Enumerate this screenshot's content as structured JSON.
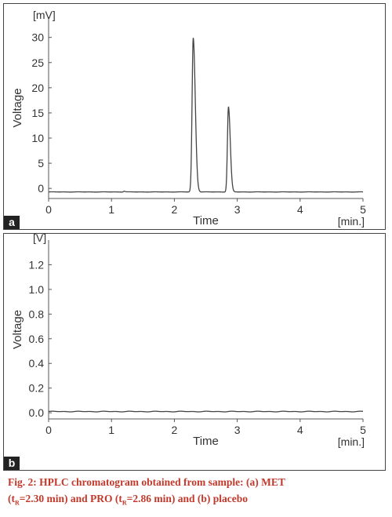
{
  "chart_data": [
    {
      "type": "line",
      "panel_label": "a",
      "unit_label": "[mV]",
      "ylabel": "Voltage",
      "xlabel": "Time",
      "x_unit_label": "[min.]",
      "xlim": [
        0,
        5
      ],
      "ylim": [
        -2,
        34
      ],
      "x_ticks": [
        0,
        1,
        2,
        3,
        4,
        5
      ],
      "y_ticks": [
        0,
        5,
        10,
        15,
        20,
        25,
        30
      ],
      "y_tick_labels": [
        "0",
        "5",
        "10",
        "15",
        "20",
        "25",
        "30"
      ],
      "grid": false,
      "baseline": -0.7,
      "peaks": [
        {
          "x": 2.3,
          "height": 30.6,
          "width": 0.018
        },
        {
          "x": 2.86,
          "height": 16.9,
          "width": 0.016
        },
        {
          "x": 1.2,
          "height": 0.15,
          "width": 0.01
        }
      ]
    },
    {
      "type": "line",
      "panel_label": "b",
      "unit_label": "[V]",
      "ylabel": "Voltage",
      "xlabel": "Time",
      "x_unit_label": "[min.]",
      "xlim": [
        0,
        5
      ],
      "ylim": [
        -0.05,
        1.4
      ],
      "x_ticks": [
        0,
        1,
        2,
        3,
        4,
        5
      ],
      "y_ticks": [
        0.0,
        0.2,
        0.4,
        0.6,
        0.8,
        1.0,
        1.2
      ],
      "y_tick_labels": [
        "0.0",
        "0.2",
        "0.4",
        "0.6",
        "0.8",
        "1.0",
        "1.2"
      ],
      "grid": false,
      "baseline": 0.01,
      "peaks": []
    }
  ],
  "caption": {
    "line1": "Fig. 2: HPLC chromatogram obtained from sample: (a) MET",
    "line2_a": "(t",
    "sub1": "R",
    "line2_b": "=2.30 min) and PRO (t",
    "sub2": "R",
    "line2_c": "=2.86 min) and (b) placebo"
  }
}
